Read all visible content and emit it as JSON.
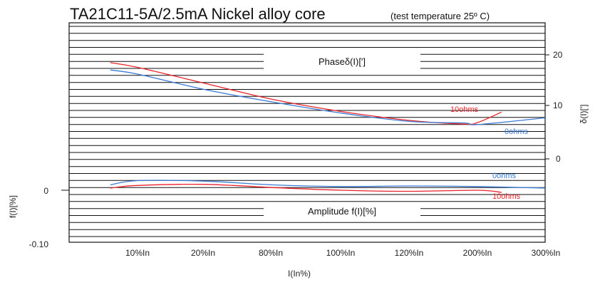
{
  "chart_data": {
    "type": "line",
    "title": "TA21C11-5A/2.5mA Nickel alloy core",
    "subtitle": "(test temperature 25º C)",
    "xlabel": "I(In%)",
    "categories": [
      "10%In",
      "20%In",
      "80%In",
      "100%In",
      "120%In",
      "200%In",
      "300%In"
    ],
    "phase_panel": {
      "label": "Phaseδ(I)[']",
      "ylabel": "δ(I)[']",
      "yticks": [
        "20",
        "10",
        "0"
      ],
      "ylim": [
        0,
        20
      ],
      "series": [
        {
          "name": "10ohms",
          "color": "#e8232a",
          "x": [
            -0.4,
            0,
            1,
            2,
            3,
            4,
            4.8,
            5,
            5.35
          ],
          "y": [
            18.5,
            17.6,
            14.5,
            11.4,
            9.1,
            7.4,
            6.7,
            7.0,
            9.0
          ]
        },
        {
          "name": "0ohms",
          "color": "#3a7bd5",
          "x": [
            -0.4,
            0,
            1,
            2,
            3,
            4,
            4.8,
            5,
            6
          ],
          "y": [
            17.1,
            16.3,
            13.3,
            10.9,
            8.8,
            7.2,
            6.9,
            6.6,
            7.9
          ]
        }
      ]
    },
    "amplitude_panel": {
      "label": "Amplitude f(I)[%]",
      "ylabel": "f(I)[%]",
      "yticks": [
        "0",
        "-0.10"
      ],
      "ylim": [
        -0.1,
        0.03
      ],
      "series": [
        {
          "name": "0ohms",
          "color": "#3a7bd5",
          "x": [
            -0.4,
            0,
            1,
            2,
            3,
            4,
            5,
            6
          ],
          "y": [
            0.01,
            0.018,
            0.017,
            0.01,
            0.007,
            0.008,
            0.007,
            0.004
          ]
        },
        {
          "name": "10ohms",
          "color": "#e8232a",
          "x": [
            -0.4,
            0,
            1,
            2,
            3,
            4,
            5,
            5.35
          ],
          "y": [
            0.004,
            0.009,
            0.011,
            0.005,
            0.0,
            -0.002,
            0.0,
            -0.004
          ]
        }
      ]
    }
  }
}
